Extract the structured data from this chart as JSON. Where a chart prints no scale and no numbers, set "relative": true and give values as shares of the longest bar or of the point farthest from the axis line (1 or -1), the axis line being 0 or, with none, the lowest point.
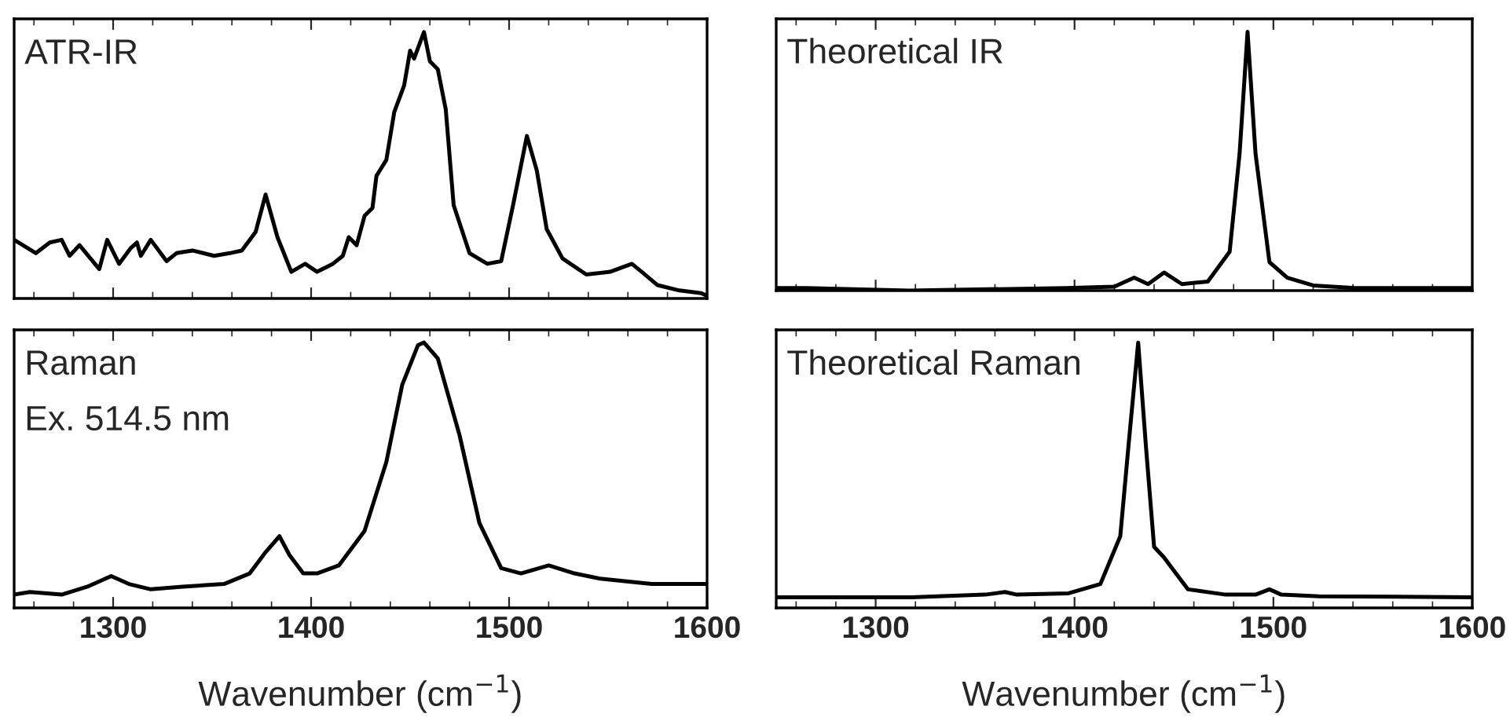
{
  "chart_data": [
    {
      "type": "line",
      "relative": true,
      "annotations": [
        "ATR-IR"
      ],
      "xlim": [
        1250,
        1600
      ],
      "xticks": [
        1300,
        1400,
        1500,
        1600
      ],
      "tick_labels": false,
      "grid": false,
      "legend": false,
      "series": [
        {
          "color": "#000000",
          "x": [
            1250,
            1261,
            1268,
            1274,
            1278,
            1283,
            1293,
            1297,
            1303,
            1309,
            1312,
            1314,
            1319,
            1327,
            1332,
            1340,
            1351,
            1359,
            1365,
            1372,
            1377,
            1383,
            1390,
            1397,
            1403,
            1411,
            1416,
            1419,
            1423,
            1427,
            1431,
            1433,
            1438,
            1442,
            1447,
            1450,
            1452,
            1457,
            1460,
            1464,
            1468,
            1472,
            1480,
            1489,
            1496,
            1502,
            1509,
            1514,
            1519,
            1527,
            1539,
            1551,
            1562,
            1567,
            1575,
            1586,
            1597,
            1600
          ],
          "values": [
            0.22,
            0.17,
            0.21,
            0.22,
            0.16,
            0.2,
            0.11,
            0.22,
            0.13,
            0.19,
            0.21,
            0.16,
            0.22,
            0.14,
            0.17,
            0.18,
            0.16,
            0.17,
            0.18,
            0.25,
            0.39,
            0.23,
            0.1,
            0.13,
            0.1,
            0.13,
            0.16,
            0.23,
            0.2,
            0.31,
            0.34,
            0.46,
            0.52,
            0.7,
            0.8,
            0.93,
            0.9,
            1.0,
            0.89,
            0.86,
            0.71,
            0.35,
            0.17,
            0.13,
            0.14,
            0.35,
            0.61,
            0.48,
            0.26,
            0.15,
            0.09,
            0.1,
            0.13,
            0.1,
            0.05,
            0.03,
            0.02,
            0.01
          ]
        }
      ]
    },
    {
      "type": "line",
      "relative": true,
      "annotations": [
        "Theoretical IR"
      ],
      "xlim": [
        1250,
        1600
      ],
      "xticks": [
        1300,
        1400,
        1500,
        1600
      ],
      "tick_labels": false,
      "grid": false,
      "legend": false,
      "series": [
        {
          "color": "#000000",
          "x": [
            1250,
            1265,
            1317,
            1396,
            1420,
            1430,
            1437,
            1445,
            1454,
            1467,
            1478,
            1483,
            1487,
            1491,
            1498,
            1507,
            1520,
            1541,
            1600
          ],
          "values": [
            0.01,
            0.01,
            0.0,
            0.01,
            0.015,
            0.05,
            0.025,
            0.07,
            0.025,
            0.035,
            0.15,
            0.53,
            1.0,
            0.53,
            0.11,
            0.05,
            0.02,
            0.01,
            0.01
          ]
        }
      ]
    },
    {
      "type": "line",
      "relative": true,
      "annotations": [
        "Raman",
        "Ex. 514.5 nm"
      ],
      "xlabel": "Wavenumber (cm$^{−1}$)",
      "xlim": [
        1250,
        1600
      ],
      "xticks": [
        1300,
        1400,
        1500,
        1600
      ],
      "tick_labels": "x",
      "grid": false,
      "legend": false,
      "series": [
        {
          "color": "#000000",
          "x": [
            1250,
            1258,
            1274,
            1287,
            1299,
            1308,
            1319,
            1335,
            1356,
            1369,
            1377,
            1384,
            1389,
            1396,
            1403,
            1414,
            1427,
            1438,
            1446,
            1454,
            1457,
            1464,
            1475,
            1485,
            1496,
            1506,
            1520,
            1533,
            1546,
            1572,
            1600
          ],
          "values": [
            0.05,
            0.06,
            0.05,
            0.08,
            0.12,
            0.09,
            0.07,
            0.08,
            0.09,
            0.13,
            0.21,
            0.27,
            0.2,
            0.13,
            0.13,
            0.16,
            0.29,
            0.55,
            0.84,
            0.99,
            1.0,
            0.94,
            0.65,
            0.32,
            0.15,
            0.13,
            0.16,
            0.13,
            0.11,
            0.09,
            0.09
          ]
        }
      ]
    },
    {
      "type": "line",
      "relative": true,
      "annotations": [
        "Theoretical Raman"
      ],
      "xlabel": "Wavenumber (cm$^{−1}$)",
      "xlim": [
        1250,
        1600
      ],
      "xticks": [
        1300,
        1400,
        1500,
        1600
      ],
      "tick_labels": "x",
      "grid": false,
      "legend": false,
      "series": [
        {
          "color": "#000000",
          "x": [
            1250,
            1318,
            1355,
            1365,
            1371,
            1397,
            1413,
            1423,
            1427,
            1432,
            1436,
            1440,
            1445,
            1450,
            1457,
            1476,
            1491,
            1498,
            1504,
            1523,
            1600
          ],
          "values": [
            0.04,
            0.04,
            0.05,
            0.06,
            0.05,
            0.055,
            0.09,
            0.27,
            0.6,
            1.0,
            0.6,
            0.23,
            0.19,
            0.14,
            0.07,
            0.05,
            0.05,
            0.07,
            0.05,
            0.044,
            0.04
          ]
        }
      ]
    }
  ]
}
